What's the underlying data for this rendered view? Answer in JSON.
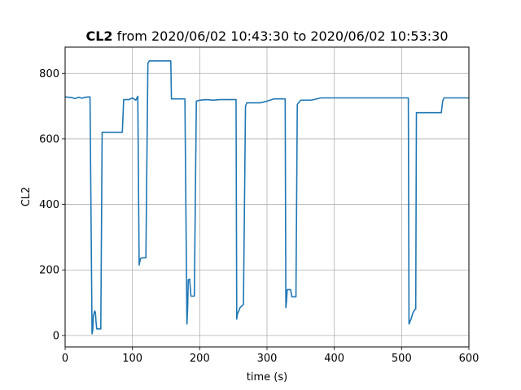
{
  "chart_data": {
    "type": "line",
    "title_bold": "CL2",
    "title_rest": " from 2020/06/02 10:43:30 to 2020/06/02 10:53:30",
    "xlabel": "time (s)",
    "ylabel": "CL2",
    "xlim": [
      0,
      600
    ],
    "ylim": [
      -35,
      880
    ],
    "xticks": [
      0,
      100,
      200,
      300,
      400,
      500,
      600
    ],
    "yticks": [
      0,
      200,
      400,
      600,
      800
    ],
    "grid": true,
    "line_color": "#1f77b4",
    "series": [
      {
        "x": [
          0,
          10,
          15,
          20,
          25,
          30,
          35,
          37,
          40,
          41,
          42,
          44,
          45,
          46,
          47,
          50,
          53,
          55,
          60,
          70,
          80,
          85,
          87,
          95,
          100,
          105,
          108,
          110,
          111,
          112,
          115,
          120,
          123,
          125,
          130,
          140,
          150,
          157,
          158,
          160,
          170,
          178,
          181,
          182,
          183,
          185,
          187,
          190,
          192,
          195,
          200,
          210,
          220,
          230,
          250,
          254,
          255,
          256,
          260,
          265,
          268,
          270,
          275,
          280,
          290,
          300,
          310,
          315,
          320,
          327,
          328,
          329,
          330,
          331,
          335,
          337,
          340,
          343,
          345,
          350,
          360,
          365,
          370,
          380,
          390,
          400,
          450,
          500,
          505,
          508,
          510,
          511,
          514,
          517,
          520,
          521,
          522,
          525,
          530,
          540,
          559,
          561,
          563,
          570,
          600
        ],
        "y": [
          728,
          726,
          723,
          727,
          724,
          727,
          728,
          728,
          5,
          15,
          60,
          75,
          70,
          40,
          20,
          20,
          20,
          620,
          620,
          620,
          620,
          620,
          720,
          720,
          725,
          718,
          730,
          215,
          225,
          235,
          237,
          237,
          830,
          838,
          838,
          838,
          838,
          838,
          722,
          722,
          722,
          722,
          35,
          80,
          170,
          172,
          120,
          120,
          120,
          715,
          718,
          720,
          718,
          720,
          720,
          720,
          50,
          65,
          85,
          95,
          700,
          710,
          710,
          710,
          710,
          715,
          722,
          722,
          722,
          722,
          85,
          105,
          140,
          140,
          140,
          118,
          118,
          118,
          705,
          718,
          718,
          718,
          720,
          725,
          725,
          725,
          725,
          725,
          725,
          725,
          725,
          35,
          50,
          70,
          80,
          80,
          680,
          680,
          680,
          680,
          680,
          715,
          725,
          725,
          725
        ]
      }
    ]
  }
}
